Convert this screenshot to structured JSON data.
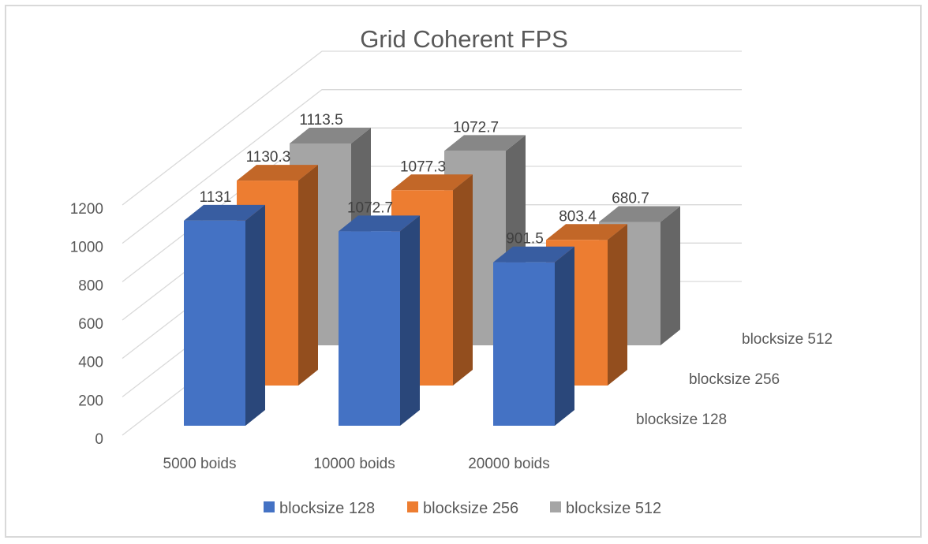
{
  "chart_data": {
    "type": "bar",
    "style": "3d-column",
    "title": "Grid Coherent FPS",
    "categories": [
      "5000 boids",
      "10000 boids",
      "20000 boids"
    ],
    "series": [
      {
        "name": "blocksize 128",
        "values": [
          1131,
          1072.7,
          901.5
        ],
        "value_labels": [
          "1131",
          "1072.7",
          "901.5"
        ],
        "color": "#4472C4"
      },
      {
        "name": "blocksize 256",
        "values": [
          1130.3,
          1077.3,
          803.4
        ],
        "value_labels": [
          "1130.3",
          "1077.3",
          "803.4"
        ],
        "color": "#ED7D31"
      },
      {
        "name": "blocksize 512",
        "values": [
          1113.5,
          1072.7,
          680.7
        ],
        "value_labels": [
          "1113.5",
          "1072.7",
          "680.7"
        ],
        "color": "#A5A5A5"
      }
    ],
    "ylim": [
      0,
      1200
    ],
    "yticks": [
      "0",
      "200",
      "400",
      "600",
      "800",
      "1000",
      "1200"
    ],
    "grid": true,
    "legend": "bottom"
  }
}
